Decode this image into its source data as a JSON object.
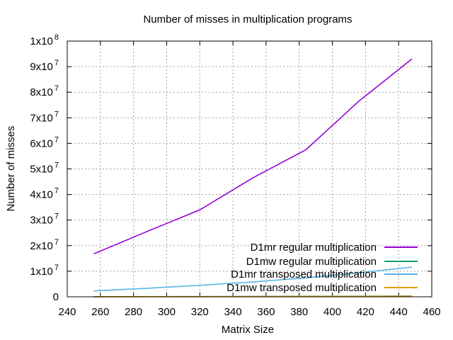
{
  "chart_data": {
    "type": "line",
    "title": "Number of misses in multiplication programs",
    "xlabel": "Matrix Size",
    "ylabel": "Number of misses",
    "xlim": [
      240,
      460
    ],
    "ylim": [
      0,
      100000000
    ],
    "x_ticks": [
      240,
      260,
      280,
      300,
      320,
      340,
      360,
      380,
      400,
      420,
      440,
      460
    ],
    "x_tick_labels": [
      "240",
      "260",
      "280",
      "300",
      "320",
      "340",
      "360",
      "380",
      "400",
      "420",
      "440",
      "460"
    ],
    "y_ticks": [
      {
        "value": 0,
        "mantissa": "0",
        "exponent": ""
      },
      {
        "value": 10000000,
        "mantissa": "1x10",
        "exponent": "7"
      },
      {
        "value": 20000000,
        "mantissa": "2x10",
        "exponent": "7"
      },
      {
        "value": 30000000,
        "mantissa": "3x10",
        "exponent": "7"
      },
      {
        "value": 40000000,
        "mantissa": "4x10",
        "exponent": "7"
      },
      {
        "value": 50000000,
        "mantissa": "5x10",
        "exponent": "7"
      },
      {
        "value": 60000000,
        "mantissa": "6x10",
        "exponent": "7"
      },
      {
        "value": 70000000,
        "mantissa": "7x10",
        "exponent": "7"
      },
      {
        "value": 80000000,
        "mantissa": "8x10",
        "exponent": "7"
      },
      {
        "value": 90000000,
        "mantissa": "9x10",
        "exponent": "7"
      },
      {
        "value": 100000000,
        "mantissa": "1x10",
        "exponent": "8"
      }
    ],
    "grid": true,
    "legend_position": "bottom-right",
    "x": [
      256,
      288,
      320,
      352,
      384,
      416,
      448
    ],
    "series": [
      {
        "name": "D1mr regular multiplication",
        "color": "#9400d3",
        "values": [
          16800000,
          25500000,
          34000000,
          46500000,
          57500000,
          76500000,
          93000000
        ]
      },
      {
        "name": "D1mw regular multiplication",
        "color": "#009e73",
        "values": [
          50000,
          70000,
          100000,
          140000,
          180000,
          240000,
          300000
        ]
      },
      {
        "name": "D1mr transposed multiplication",
        "color": "#56b4e9",
        "values": [
          2300000,
          3300000,
          4500000,
          5800000,
          7400000,
          9400000,
          11600000
        ]
      },
      {
        "name": "D1mw transposed multiplication",
        "color": "#e69f00",
        "values": [
          30000,
          45000,
          65000,
          90000,
          120000,
          160000,
          200000
        ]
      }
    ]
  }
}
